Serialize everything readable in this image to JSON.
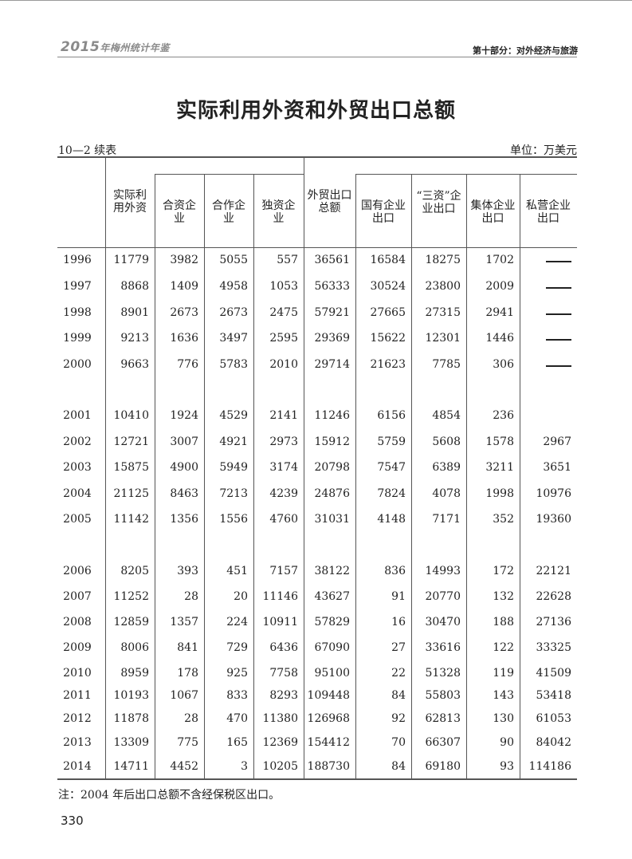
{
  "running_header": {
    "yearbook": "2015",
    "yearbook_suffix": "年梅州统计年鉴",
    "section": "第十部分：对外经济与旅游"
  },
  "title": "实际利用外资和外贸出口总额",
  "table_number": "10—2  续表",
  "unit": "单位：万美元",
  "columns": [
    "实际利用外资",
    "合资企业",
    "合作企业",
    "独资企业",
    "外贸出口总额",
    "国有企业出口",
    "“三资”企业出口",
    "集体企业出口",
    "私营企业出口"
  ],
  "rows": [
    {
      "year": "1996",
      "values": [
        "11779",
        "3982",
        "5055",
        "557",
        "36561",
        "16584",
        "18275",
        "1702",
        "—"
      ]
    },
    {
      "year": "1997",
      "values": [
        "8868",
        "1409",
        "4958",
        "1053",
        "56333",
        "30524",
        "23800",
        "2009",
        "—"
      ]
    },
    {
      "year": "1998",
      "values": [
        "8901",
        "2673",
        "2673",
        "2475",
        "57921",
        "27665",
        "27315",
        "2941",
        "—"
      ]
    },
    {
      "year": "1999",
      "values": [
        "9213",
        "1636",
        "3497",
        "2595",
        "29369",
        "15622",
        "12301",
        "1446",
        "—"
      ]
    },
    {
      "year": "2000",
      "values": [
        "9663",
        "776",
        "5783",
        "2010",
        "29714",
        "21623",
        "7785",
        "306",
        "—"
      ]
    },
    {
      "year": "2001",
      "values": [
        "10410",
        "1924",
        "4529",
        "2141",
        "11246",
        "6156",
        "4854",
        "236",
        ""
      ]
    },
    {
      "year": "2002",
      "values": [
        "12721",
        "3007",
        "4921",
        "2973",
        "15912",
        "5759",
        "5608",
        "1578",
        "2967"
      ]
    },
    {
      "year": "2003",
      "values": [
        "15875",
        "4900",
        "5949",
        "3174",
        "20798",
        "7547",
        "6389",
        "3211",
        "3651"
      ]
    },
    {
      "year": "2004",
      "values": [
        "21125",
        "8463",
        "7213",
        "4239",
        "24876",
        "7824",
        "4078",
        "1998",
        "10976"
      ]
    },
    {
      "year": "2005",
      "values": [
        "11142",
        "1356",
        "1556",
        "4760",
        "31031",
        "4148",
        "7171",
        "352",
        "19360"
      ]
    },
    {
      "year": "2006",
      "values": [
        "8205",
        "393",
        "451",
        "7157",
        "38122",
        "836",
        "14993",
        "172",
        "22121"
      ]
    },
    {
      "year": "2007",
      "values": [
        "11252",
        "28",
        "20",
        "11146",
        "43627",
        "91",
        "20770",
        "132",
        "22628"
      ]
    },
    {
      "year": "2008",
      "values": [
        "12859",
        "1357",
        "224",
        "10911",
        "57829",
        "16",
        "30470",
        "188",
        "27136"
      ]
    },
    {
      "year": "2009",
      "values": [
        "8006",
        "841",
        "729",
        "6436",
        "67090",
        "27",
        "33616",
        "122",
        "33325"
      ]
    },
    {
      "year": "2010",
      "values": [
        "8959",
        "178",
        "925",
        "7758",
        "95100",
        "22",
        "51328",
        "119",
        "41509"
      ]
    },
    {
      "year": "2011",
      "values": [
        "10193",
        "1067",
        "833",
        "8293",
        "109448",
        "84",
        "55803",
        "143",
        "53418"
      ]
    },
    {
      "year": "2012",
      "values": [
        "11878",
        "28",
        "470",
        "11380",
        "126968",
        "92",
        "62813",
        "130",
        "61053"
      ]
    },
    {
      "year": "2013",
      "values": [
        "13309",
        "775",
        "165",
        "12369",
        "154412",
        "70",
        "66307",
        "90",
        "84042"
      ]
    },
    {
      "year": "2014",
      "values": [
        "14711",
        "4452",
        "3",
        "10205",
        "188730",
        "84",
        "69180",
        "93",
        "114186"
      ]
    }
  ],
  "note": "注：2004 年后出口总额不含经保税区出口。",
  "page_number": "330"
}
